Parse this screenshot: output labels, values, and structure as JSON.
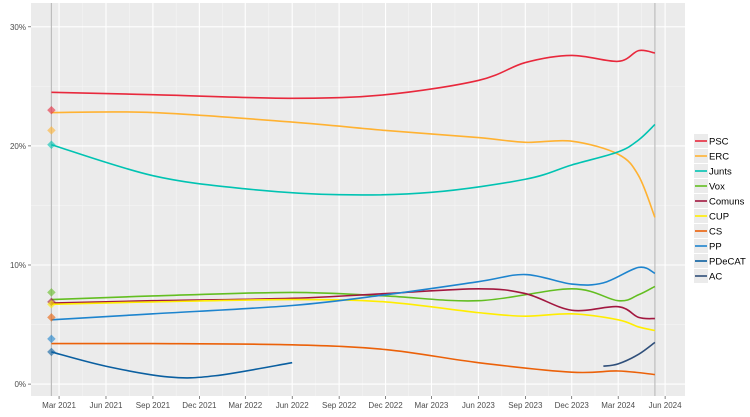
{
  "chart_data": {
    "type": "line",
    "title": "",
    "xlabel": "",
    "ylabel": "",
    "ylim": [
      -1,
      32
    ],
    "xlim": [
      "2021-01-05",
      "2024-07-10"
    ],
    "grid": true,
    "legend_position": "right",
    "y_ticks": [
      {
        "v": 0,
        "label": "0%"
      },
      {
        "v": 10,
        "label": "10%"
      },
      {
        "v": 20,
        "label": "20%"
      },
      {
        "v": 30,
        "label": "30%"
      }
    ],
    "x_ticks": [
      {
        "d": "2021-03-01",
        "label": "Mar 2021"
      },
      {
        "d": "2021-06-01",
        "label": "Jun 2021"
      },
      {
        "d": "2021-09-01",
        "label": "Sep 2021"
      },
      {
        "d": "2021-12-01",
        "label": "Dec 2021"
      },
      {
        "d": "2022-03-01",
        "label": "Mar 2022"
      },
      {
        "d": "2022-06-01",
        "label": "Jun 2022"
      },
      {
        "d": "2022-09-01",
        "label": "Sep 2022"
      },
      {
        "d": "2022-12-01",
        "label": "Dec 2022"
      },
      {
        "d": "2023-03-01",
        "label": "Mar 2023"
      },
      {
        "d": "2023-06-01",
        "label": "Jun 2023"
      },
      {
        "d": "2023-09-01",
        "label": "Sep 2023"
      },
      {
        "d": "2023-12-01",
        "label": "Dec 2023"
      },
      {
        "d": "2024-03-01",
        "label": "Mar 2024"
      },
      {
        "d": "2024-06-01",
        "label": "Jun 2024"
      }
    ],
    "election_dates": [
      "2021-02-14",
      "2024-05-12"
    ],
    "series": [
      {
        "name": "PSC",
        "color": "#e8283c",
        "result": 23.0,
        "trend": [
          [
            "2021-02-14",
            24.5
          ],
          [
            "2021-09-01",
            24.3
          ],
          [
            "2022-06-01",
            24.0
          ],
          [
            "2022-12-01",
            24.3
          ],
          [
            "2023-06-01",
            25.5
          ],
          [
            "2023-09-01",
            27.0
          ],
          [
            "2023-12-01",
            27.6
          ],
          [
            "2024-03-01",
            27.1
          ],
          [
            "2024-04-10",
            28.0
          ],
          [
            "2024-05-12",
            27.8
          ]
        ]
      },
      {
        "name": "ERC",
        "color": "#ffb232",
        "result": 21.3,
        "trend": [
          [
            "2021-02-14",
            22.8
          ],
          [
            "2021-09-01",
            22.8
          ],
          [
            "2022-06-01",
            22.0
          ],
          [
            "2022-12-01",
            21.3
          ],
          [
            "2023-06-01",
            20.7
          ],
          [
            "2023-09-01",
            20.3
          ],
          [
            "2023-12-01",
            20.4
          ],
          [
            "2024-03-01",
            19.3
          ],
          [
            "2024-04-10",
            17.5
          ],
          [
            "2024-05-12",
            14.0
          ]
        ]
      },
      {
        "name": "Junts",
        "color": "#00c3b2",
        "result": 20.1,
        "trend": [
          [
            "2021-02-14",
            20.1
          ],
          [
            "2021-09-01",
            17.5
          ],
          [
            "2022-03-01",
            16.4
          ],
          [
            "2022-09-01",
            15.9
          ],
          [
            "2023-03-01",
            16.1
          ],
          [
            "2023-09-01",
            17.2
          ],
          [
            "2023-12-01",
            18.4
          ],
          [
            "2024-03-01",
            19.5
          ],
          [
            "2024-04-10",
            20.5
          ],
          [
            "2024-05-12",
            21.8
          ]
        ]
      },
      {
        "name": "Vox",
        "color": "#63be21",
        "result": 7.7,
        "trend": [
          [
            "2021-02-14",
            7.1
          ],
          [
            "2021-09-01",
            7.4
          ],
          [
            "2022-06-01",
            7.7
          ],
          [
            "2022-12-01",
            7.4
          ],
          [
            "2023-06-01",
            7.0
          ],
          [
            "2023-12-01",
            8.0
          ],
          [
            "2024-03-01",
            7.0
          ],
          [
            "2024-04-10",
            7.5
          ],
          [
            "2024-05-12",
            8.2
          ]
        ]
      },
      {
        "name": "Comuns",
        "color": "#a2173f",
        "result": 6.9,
        "trend": [
          [
            "2021-02-14",
            6.8
          ],
          [
            "2021-09-01",
            7.0
          ],
          [
            "2022-06-01",
            7.2
          ],
          [
            "2022-12-01",
            7.6
          ],
          [
            "2023-06-01",
            8.0
          ],
          [
            "2023-09-01",
            7.6
          ],
          [
            "2023-12-01",
            6.2
          ],
          [
            "2024-03-01",
            6.5
          ],
          [
            "2024-04-10",
            5.6
          ],
          [
            "2024-05-12",
            5.5
          ]
        ]
      },
      {
        "name": "CUP",
        "color": "#ffed00",
        "result": 6.7,
        "trend": [
          [
            "2021-02-14",
            6.7
          ],
          [
            "2021-09-01",
            6.9
          ],
          [
            "2022-06-01",
            7.1
          ],
          [
            "2022-12-01",
            6.9
          ],
          [
            "2023-06-01",
            6.0
          ],
          [
            "2023-09-01",
            5.7
          ],
          [
            "2023-12-01",
            5.9
          ],
          [
            "2024-03-01",
            5.4
          ],
          [
            "2024-04-10",
            4.8
          ],
          [
            "2024-05-12",
            4.5
          ]
        ]
      },
      {
        "name": "CS",
        "color": "#eb6109",
        "result": 5.6,
        "trend": [
          [
            "2021-02-14",
            3.4
          ],
          [
            "2021-09-01",
            3.4
          ],
          [
            "2022-06-01",
            3.3
          ],
          [
            "2022-12-01",
            2.9
          ],
          [
            "2023-06-01",
            1.8
          ],
          [
            "2023-12-01",
            1.0
          ],
          [
            "2024-03-01",
            1.1
          ],
          [
            "2024-05-12",
            0.8
          ]
        ]
      },
      {
        "name": "PP",
        "color": "#1d84ce",
        "result": 3.8,
        "trend": [
          [
            "2021-02-14",
            5.4
          ],
          [
            "2021-09-01",
            5.9
          ],
          [
            "2022-06-01",
            6.6
          ],
          [
            "2022-12-01",
            7.5
          ],
          [
            "2023-06-01",
            8.6
          ],
          [
            "2023-09-01",
            9.2
          ],
          [
            "2023-12-01",
            8.4
          ],
          [
            "2024-02-01",
            8.5
          ],
          [
            "2024-04-10",
            9.8
          ],
          [
            "2024-05-12",
            9.3
          ]
        ]
      },
      {
        "name": "PDeCAT",
        "color": "#0a5fa0",
        "result": 2.7,
        "trend": [
          [
            "2021-02-14",
            2.7
          ],
          [
            "2021-06-01",
            1.5
          ],
          [
            "2021-10-01",
            0.6
          ],
          [
            "2022-01-01",
            0.7
          ],
          [
            "2022-06-01",
            1.8
          ]
        ]
      },
      {
        "name": "AC",
        "color": "#2f4f7a",
        "result": null,
        "trend": [
          [
            "2024-02-01",
            1.5
          ],
          [
            "2024-03-01",
            1.7
          ],
          [
            "2024-04-10",
            2.5
          ],
          [
            "2024-05-12",
            3.5
          ]
        ]
      }
    ]
  }
}
